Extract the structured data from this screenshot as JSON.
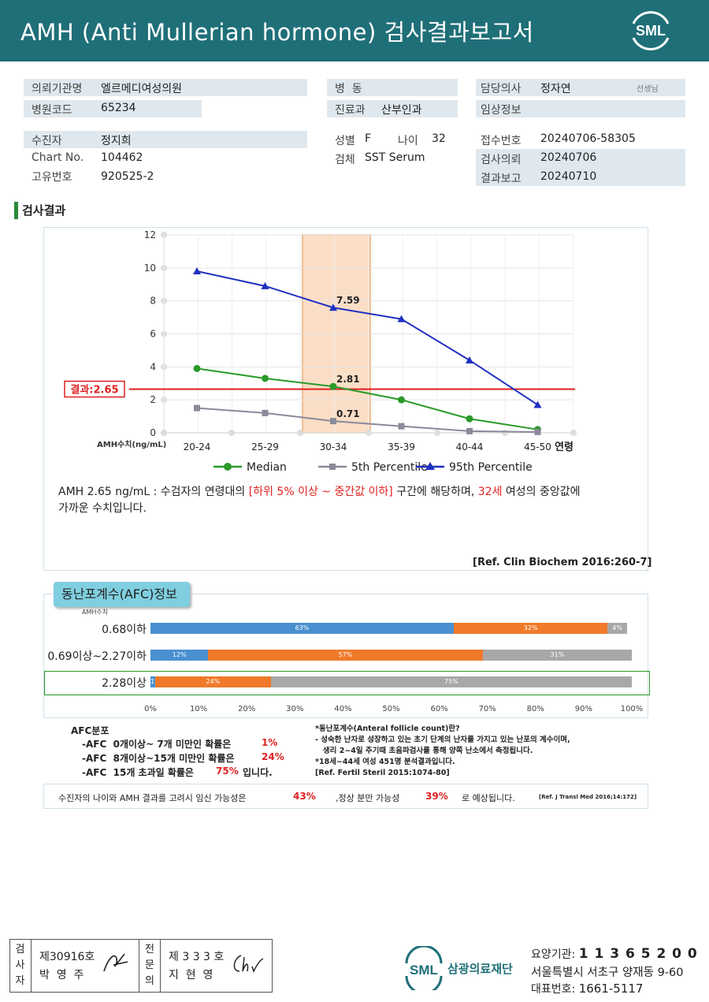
{
  "header": {
    "title": "AMH (Anti Mullerian hormone) 검사결과보고서",
    "logo_text": "SML"
  },
  "info": {
    "institution_label": "의뢰기관명",
    "institution": "엘르메디여성의원",
    "code_label": "병원코드",
    "code": "65234",
    "ward_label": "병  동",
    "ward": "",
    "dept_label": "진료과",
    "dept": "산부인과",
    "doctor_label": "담당의사",
    "doctor": "정자연",
    "doctor_suffix": "선생님",
    "clinical_label": "임상정보",
    "clinical": "",
    "patient_label": "수진자",
    "patient": "정지희",
    "chart_label": "Chart No.",
    "chart": "104462",
    "id_label": "고유번호",
    "id": "920525-2",
    "sex_label": "성별",
    "sex": "F",
    "age_label": "나이",
    "age": "32",
    "specimen_label": "검체",
    "specimen": "SST Serum",
    "receipt_label": "접수번호",
    "receipt": "20240706-58305",
    "request_label": "검사의뢰",
    "request": "20240706",
    "report_label": "결과보고",
    "report": "20240710"
  },
  "section_title": "검사결과",
  "chart_data": {
    "type": "line",
    "categories": [
      "20-24",
      "25-29",
      "30-34",
      "35-39",
      "40-44",
      "45-50"
    ],
    "ylim": [
      0,
      12
    ],
    "yticks": [
      0,
      2,
      4,
      6,
      8,
      10,
      12
    ],
    "ylabel": "AMH수치(ng/mL)",
    "xlabel": "연령",
    "result_label": "결과:2.65",
    "result_value": 2.65,
    "highlight_category": "30-34",
    "series": [
      {
        "name": "Median",
        "color": "#2a9a2a",
        "marker": "circle",
        "values": [
          3.9,
          3.3,
          2.81,
          2.0,
          0.85,
          0.2
        ]
      },
      {
        "name": "5th Percentile",
        "color": "#8a8a9a",
        "marker": "square",
        "values": [
          1.5,
          1.2,
          0.71,
          0.4,
          0.1,
          0.05
        ]
      },
      {
        "name": "95th Percentile",
        "color": "#2030c0",
        "marker": "triangle",
        "values": [
          9.8,
          8.9,
          7.59,
          6.9,
          4.4,
          1.7
        ]
      }
    ],
    "data_labels": [
      {
        "series": 0,
        "index": 2,
        "text": "2.81"
      },
      {
        "series": 1,
        "index": 2,
        "text": "0.71"
      },
      {
        "series": 2,
        "index": 2,
        "text": "7.59"
      }
    ]
  },
  "interpretation": {
    "part1": "AMH  2.65 ng/mL : 수검자의 연령대의 ",
    "part2": "[하위 5% 이상 ~ 중간값 이하]",
    "part3": "  구간에 해당하며, ",
    "part4": "32세",
    "part5": " 여성의 중앙값에",
    "line2": "가까운 수치입니다.",
    "ref": "[Ref. Clin Biochem 2016:260-7]"
  },
  "afc": {
    "tab": "동난포계수(AFC)정보",
    "amh_label": "AMH수치",
    "rows": [
      {
        "label": "0.68이하",
        "segments": [
          63,
          32,
          4
        ]
      },
      {
        "label": "0.69이상~2.27이하",
        "segments": [
          12,
          57,
          31
        ]
      },
      {
        "label": "2.28이상",
        "segments": [
          1,
          24,
          75
        ]
      }
    ],
    "axis": [
      "0%",
      "10%",
      "20%",
      "30%",
      "40%",
      "50%",
      "60%",
      "70%",
      "80%",
      "90%",
      "100%"
    ],
    "colors": [
      "#4a90d0",
      "#f07a2a",
      "#a8a8a8"
    ],
    "legend_title": "AFC분포",
    "legend": [
      {
        "text": "-AFC  0개이상~ 7개 미만인 확률은",
        "value": "1%"
      },
      {
        "text": "-AFC  8개이상~15개 미만인 확률은",
        "value": "24%"
      },
      {
        "text": "-AFC  15개 초과일 확률은",
        "value": "75%",
        "suffix": "입니다."
      }
    ],
    "note1": "*동난포계수(Anteral follicle count)란?",
    "note2": "- 성숙한 난자로 성장하고 있는 초기 단계의 난자를 가지고 있는 난포의 계수이며,",
    "note3": "   생리 2~4일 주기때 초음파검사를 통해 양쪽 난소에서 측정됩니다.",
    "note4": "*18세~44세 여성 451명 분석결과입니다.",
    "note5": "[Ref. Fertil Steril 2015:1074-80]"
  },
  "pregnancy": {
    "part1": "수진자의  나이와 AMH 결과를 고려시 임신 가능성은",
    "value1": "43%",
    "part2": ",정상 분만 가능성",
    "value2": "39%",
    "part3": "로 예상됩니다.",
    "ref": "[Ref. J Transl Med 2016;14:172]"
  },
  "footer": {
    "tester_label": [
      "검",
      "사",
      "자"
    ],
    "tester_no": "제30916호",
    "tester_name": "박  영  주",
    "expert_label": [
      "전",
      "문",
      "의"
    ],
    "expert_no": "제 3 3 3 호",
    "expert_name": "지  현  영",
    "org_logo": "SML",
    "org_name": "삼광의료재단",
    "code_label": "요양기관:",
    "code": "1 1 3 6 5 2 0 0",
    "address": "서울특별시 서초구 양재동 9-60",
    "phone_label": "대표번호:",
    "phone": "1661-5117"
  }
}
